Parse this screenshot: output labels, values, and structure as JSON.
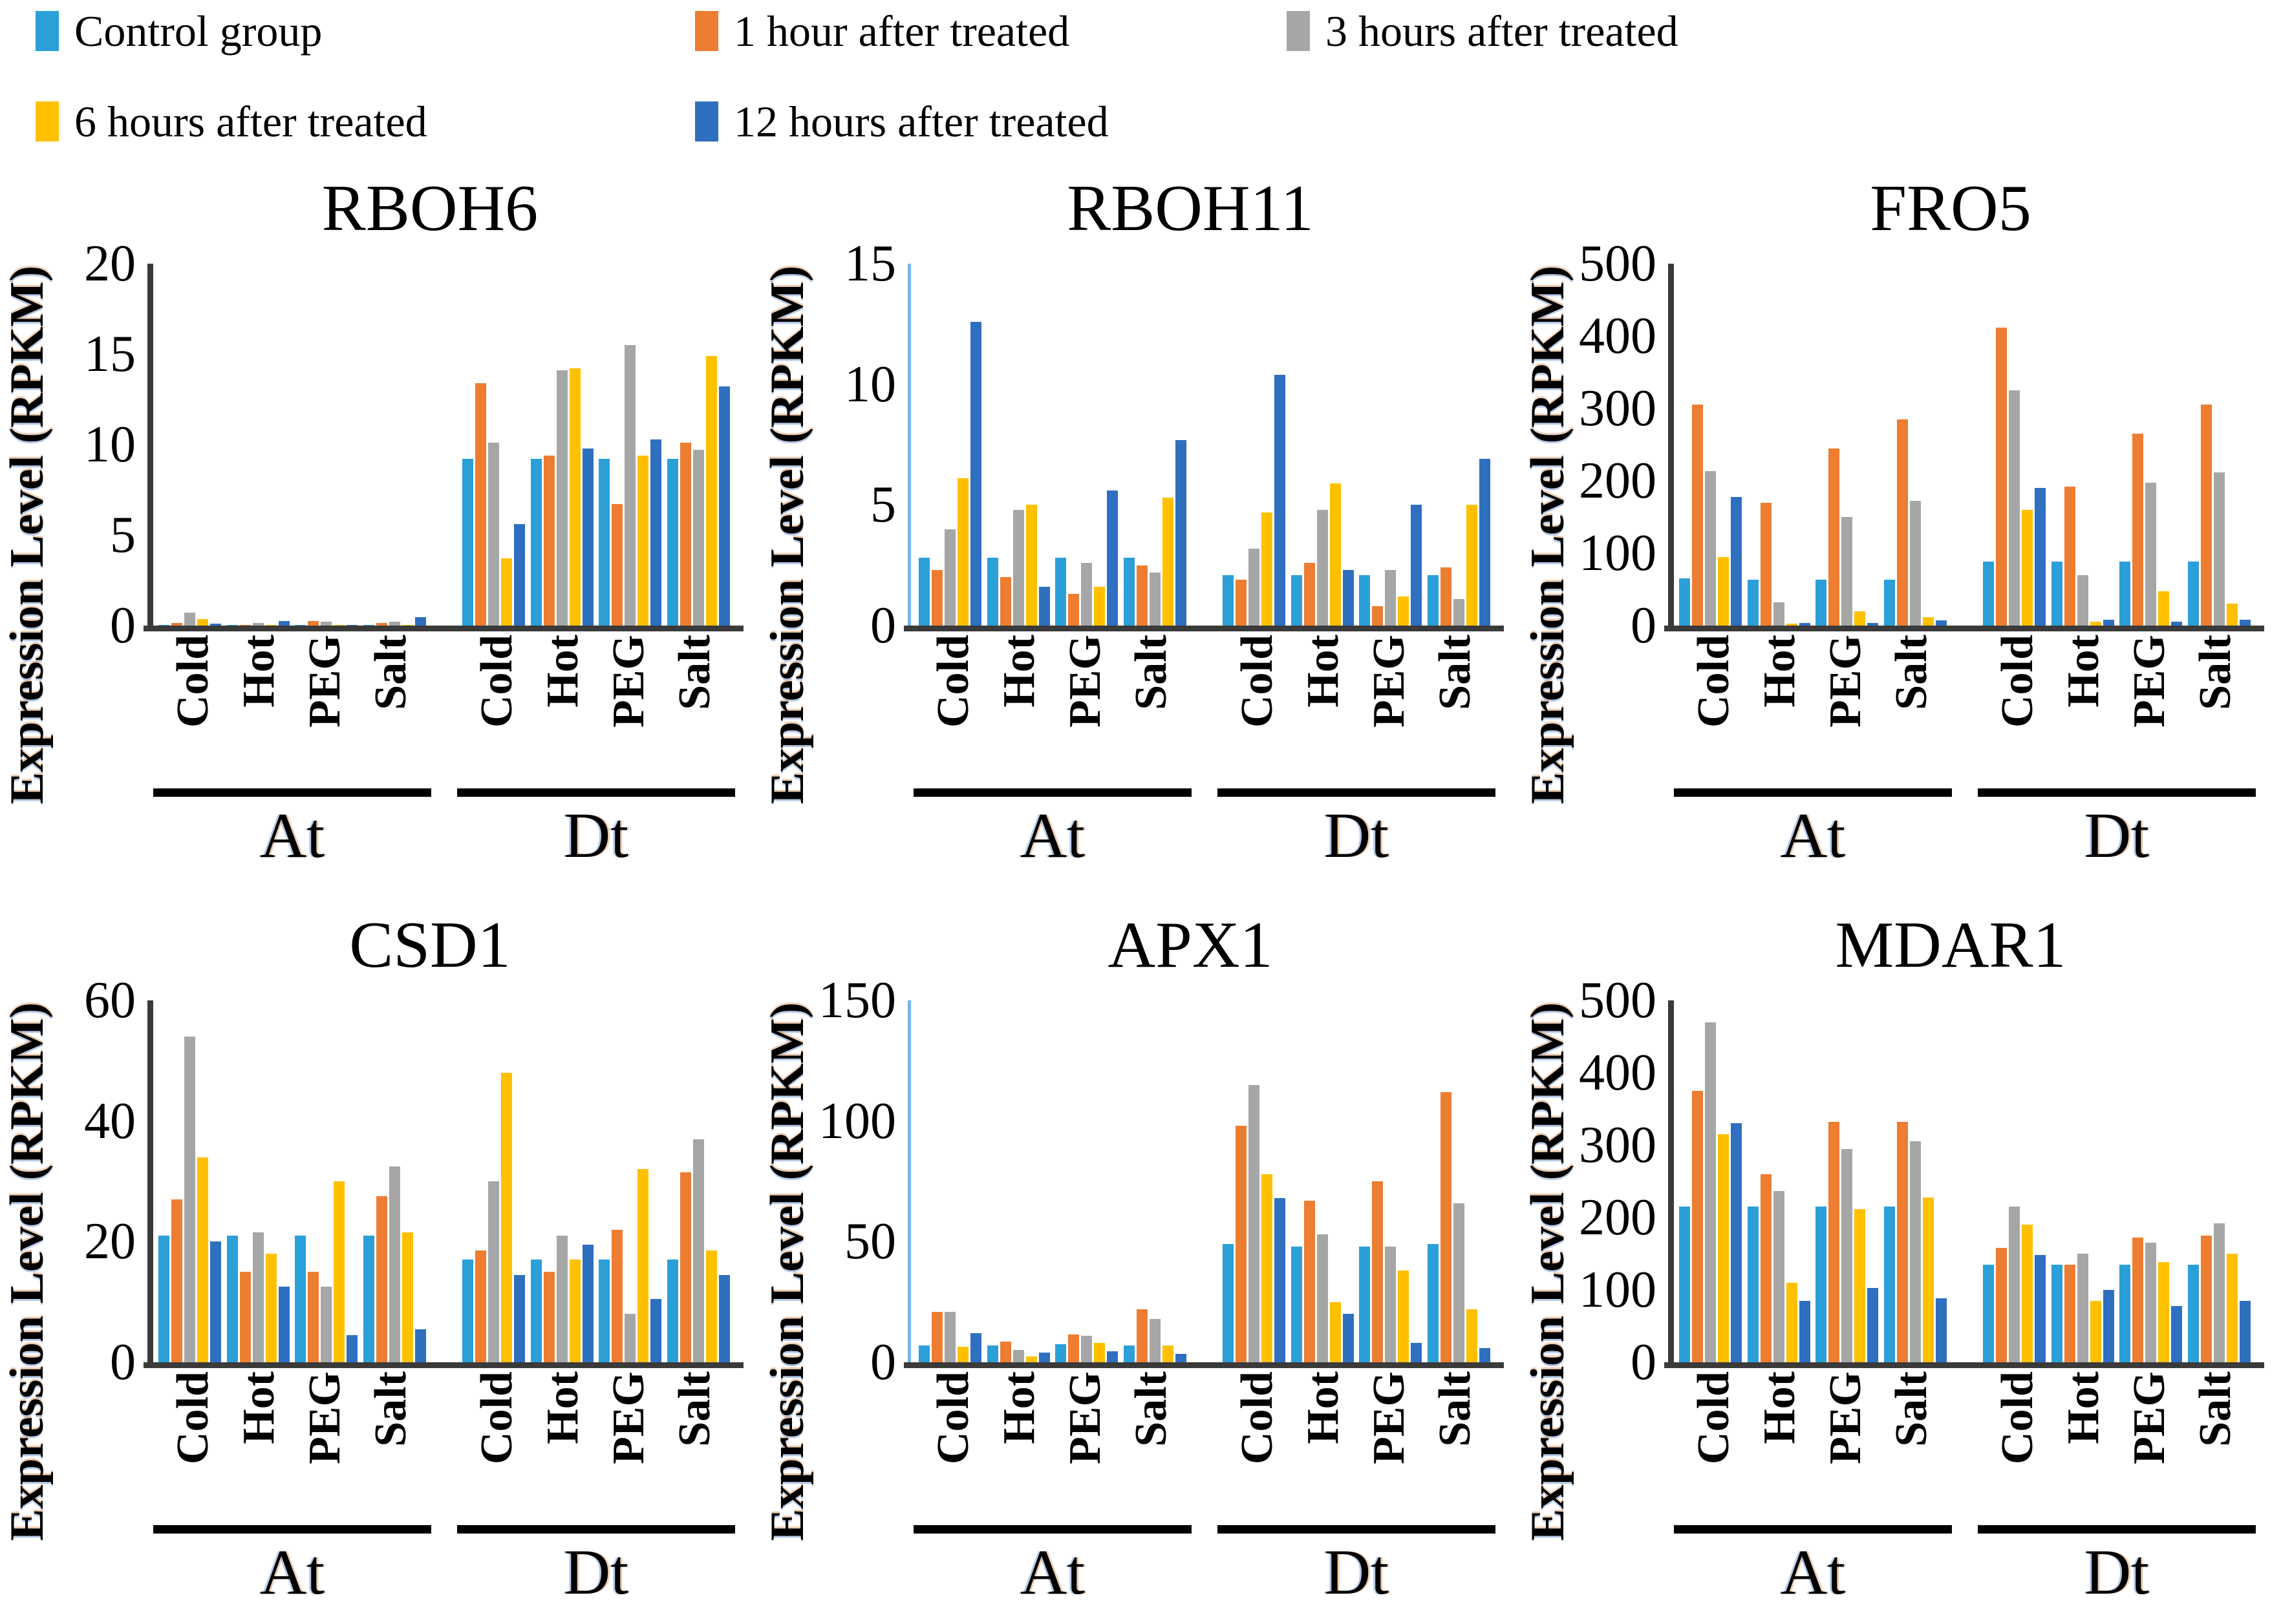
{
  "legend": {
    "items": [
      {
        "label": "Control group",
        "color": "#2B9FD8"
      },
      {
        "label": "1 hour after treated",
        "color": "#ED7D31"
      },
      {
        "label": "3 hours after treated",
        "color": "#A6A6A6"
      },
      {
        "label": "6 hours after treated",
        "color": "#FFC000"
      },
      {
        "label": "12 hours after treated",
        "color": "#2E6FC0"
      }
    ]
  },
  "chart_data": [
    {
      "type": "bar",
      "title": "RBOH6",
      "ylabel": "Expression Level (RPKM)",
      "ylim": [
        0,
        20
      ],
      "yticks": [
        0,
        5,
        10,
        15,
        20
      ],
      "categories": [
        "Cold",
        "Hot",
        "PEG",
        "Salt"
      ],
      "group_labels": [
        "At",
        "Dt"
      ],
      "axis_style": "dark",
      "series": [
        {
          "name": "Control group",
          "At": [
            0.05,
            0.05,
            0.05,
            0.05
          ],
          "Dt": [
            9.2,
            9.2,
            9.2,
            9.2
          ]
        },
        {
          "name": "1 hour after treated",
          "At": [
            0.15,
            0.05,
            0.25,
            0.15
          ],
          "Dt": [
            13.4,
            9.4,
            6.7,
            10.1
          ]
        },
        {
          "name": "3 hours after treated",
          "At": [
            0.7,
            0.15,
            0.2,
            0.2
          ],
          "Dt": [
            10.1,
            14.1,
            15.5,
            9.7
          ]
        },
        {
          "name": "6 hours after treated",
          "At": [
            0.35,
            0.05,
            0.05,
            0.05
          ],
          "Dt": [
            3.7,
            14.2,
            9.4,
            14.9
          ]
        },
        {
          "name": "12 hours after treated",
          "At": [
            0.1,
            0.25,
            0.05,
            0.45
          ],
          "Dt": [
            5.6,
            9.8,
            10.3,
            13.2
          ]
        }
      ]
    },
    {
      "type": "bar",
      "title": "RBOH11",
      "ylabel": "Expression Level (RPKM)",
      "ylim": [
        0,
        15
      ],
      "yticks": [
        0,
        5,
        10,
        15
      ],
      "categories": [
        "Cold",
        "Hot",
        "PEG",
        "Salt"
      ],
      "group_labels": [
        "At",
        "Dt"
      ],
      "axis_style": "light",
      "series": [
        {
          "name": "Control group",
          "At": [
            2.8,
            2.8,
            2.8,
            2.8
          ],
          "Dt": [
            2.1,
            2.1,
            2.1,
            2.1
          ]
        },
        {
          "name": "1 hour after treated",
          "At": [
            2.3,
            2.0,
            1.3,
            2.5
          ],
          "Dt": [
            1.9,
            2.6,
            0.8,
            2.4
          ]
        },
        {
          "name": "3 hours after treated",
          "At": [
            4.0,
            4.8,
            2.6,
            2.2
          ],
          "Dt": [
            3.2,
            4.8,
            2.3,
            1.1
          ]
        },
        {
          "name": "6 hours after treated",
          "At": [
            6.1,
            5.0,
            1.6,
            5.3
          ],
          "Dt": [
            4.7,
            5.9,
            1.2,
            5.0
          ]
        },
        {
          "name": "12 hours after treated",
          "At": [
            12.6,
            1.6,
            5.6,
            7.7
          ],
          "Dt": [
            10.4,
            2.3,
            5.0,
            6.9
          ]
        }
      ]
    },
    {
      "type": "bar",
      "title": "FRO5",
      "ylabel": "Expression Level (RPKM)",
      "ylim": [
        0,
        500
      ],
      "yticks": [
        0,
        100,
        200,
        300,
        400,
        500
      ],
      "categories": [
        "Cold",
        "Hot",
        "PEG",
        "Salt"
      ],
      "group_labels": [
        "At",
        "Dt"
      ],
      "axis_style": "dark",
      "series": [
        {
          "name": "Control group",
          "At": [
            65,
            63,
            63,
            63
          ],
          "Dt": [
            88,
            88,
            88,
            88
          ]
        },
        {
          "name": "1 hour after treated",
          "At": [
            305,
            170,
            245,
            285
          ],
          "Dt": [
            412,
            192,
            265,
            305
          ]
        },
        {
          "name": "3 hours after treated",
          "At": [
            213,
            32,
            150,
            172
          ],
          "Dt": [
            325,
            70,
            197,
            212
          ]
        },
        {
          "name": "6 hours after treated",
          "At": [
            95,
            3,
            20,
            12
          ],
          "Dt": [
            160,
            5,
            47,
            30
          ]
        },
        {
          "name": "12 hours after treated",
          "At": [
            178,
            4,
            4,
            7
          ],
          "Dt": [
            190,
            8,
            5,
            8
          ]
        }
      ]
    },
    {
      "type": "bar",
      "title": "CSD1",
      "ylabel": "Expression Level (RPKM)",
      "ylim": [
        0,
        60
      ],
      "yticks": [
        0,
        20,
        40,
        60
      ],
      "categories": [
        "Cold",
        "Hot",
        "PEG",
        "Salt"
      ],
      "group_labels": [
        "At",
        "Dt"
      ],
      "axis_style": "dark",
      "series": [
        {
          "name": "Control group",
          "At": [
            21,
            21,
            21,
            21
          ],
          "Dt": [
            17,
            17,
            17,
            17
          ]
        },
        {
          "name": "1 hour after treated",
          "At": [
            27,
            15,
            15,
            27.5
          ],
          "Dt": [
            18.5,
            15,
            22,
            31.5
          ]
        },
        {
          "name": "3 hours after treated",
          "At": [
            54,
            21.5,
            12.5,
            32.5
          ],
          "Dt": [
            30,
            21,
            8,
            37
          ]
        },
        {
          "name": "6 hours after treated",
          "At": [
            34,
            18,
            30,
            21.5
          ],
          "Dt": [
            48,
            17,
            32,
            18.5
          ]
        },
        {
          "name": "12 hours after treated",
          "At": [
            20,
            12.5,
            4.5,
            5.5
          ],
          "Dt": [
            14.5,
            19.5,
            10.5,
            14.5
          ]
        }
      ]
    },
    {
      "type": "bar",
      "title": "APX1",
      "ylabel": "Expression Level (RPKM)",
      "ylim": [
        0,
        150
      ],
      "yticks": [
        0,
        50,
        100,
        150
      ],
      "categories": [
        "Cold",
        "Hot",
        "PEG",
        "Salt"
      ],
      "group_labels": [
        "At",
        "Dt"
      ],
      "axis_style": "light",
      "series": [
        {
          "name": "Control group",
          "At": [
            7,
            7,
            7.5,
            7
          ],
          "Dt": [
            49,
            48,
            48,
            49
          ]
        },
        {
          "name": "1 hour after treated",
          "At": [
            21,
            8.5,
            11.5,
            22
          ],
          "Dt": [
            98,
            67,
            75,
            112
          ]
        },
        {
          "name": "3 hours after treated",
          "At": [
            21,
            5,
            11,
            18
          ],
          "Dt": [
            115,
            53,
            48,
            66
          ]
        },
        {
          "name": "6 hours after treated",
          "At": [
            6.5,
            2.5,
            8,
            7
          ],
          "Dt": [
            78,
            25,
            38,
            22
          ]
        },
        {
          "name": "12 hours after treated",
          "At": [
            12,
            4,
            4.5,
            3.5
          ],
          "Dt": [
            68,
            20,
            8,
            6
          ]
        }
      ]
    },
    {
      "type": "bar",
      "title": "MDAR1",
      "ylabel": "Expression Level (RPKM)",
      "ylim": [
        0,
        500
      ],
      "yticks": [
        0,
        100,
        200,
        300,
        400,
        500
      ],
      "categories": [
        "Cold",
        "Hot",
        "PEG",
        "Salt"
      ],
      "group_labels": [
        "At",
        "Dt"
      ],
      "axis_style": "dark",
      "series": [
        {
          "name": "Control group",
          "At": [
            215,
            215,
            215,
            215
          ],
          "Dt": [
            135,
            135,
            135,
            135
          ]
        },
        {
          "name": "1 hour after treated",
          "At": [
            375,
            260,
            332,
            332
          ],
          "Dt": [
            158,
            135,
            172,
            175
          ]
        },
        {
          "name": "3 hours after treated",
          "At": [
            470,
            237,
            295,
            305
          ],
          "Dt": [
            215,
            150,
            165,
            192
          ]
        },
        {
          "name": "6 hours after treated",
          "At": [
            315,
            110,
            212,
            228
          ],
          "Dt": [
            190,
            85,
            138,
            150
          ]
        },
        {
          "name": "12 hours after treated",
          "At": [
            330,
            85,
            103,
            88
          ],
          "Dt": [
            148,
            100,
            78,
            85
          ]
        }
      ]
    }
  ]
}
